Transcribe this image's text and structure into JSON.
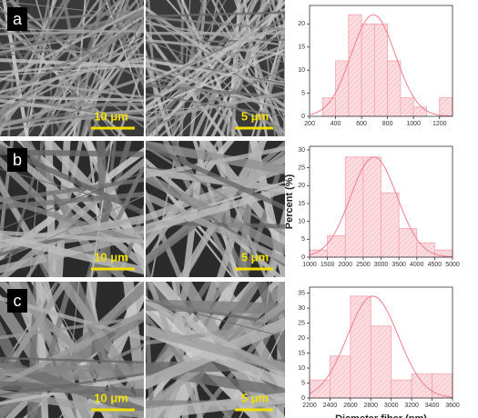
{
  "panels": [
    {
      "label": "a",
      "scale_bars": [
        "10 μm",
        "5 μm"
      ]
    },
    {
      "label": "b",
      "scale_bars": [
        "10 μm",
        "5 μm"
      ]
    },
    {
      "label": "c",
      "scale_bars": [
        "10 μm",
        "5 μm"
      ]
    }
  ],
  "chart_data": [
    {
      "type": "histogram",
      "bins": [
        300,
        400,
        500,
        600,
        700,
        800,
        900,
        1000,
        1100,
        1200,
        1300
      ],
      "values": [
        4,
        12,
        22,
        20,
        20,
        12,
        4,
        2,
        0,
        4
      ],
      "color": "#f4a3ad",
      "xlim": [
        200,
        1300
      ],
      "xticks": [
        200,
        400,
        600,
        800,
        1000,
        1200
      ],
      "ylim": [
        0,
        24
      ],
      "yticks": [
        0,
        5,
        10,
        15,
        20
      ],
      "fit": {
        "mean": 690,
        "sd": 170,
        "peak": 22
      }
    },
    {
      "type": "histogram",
      "bins": [
        1000,
        1500,
        2000,
        2500,
        3000,
        3500,
        4000,
        4500,
        5000
      ],
      "values": [
        2,
        6,
        28,
        28,
        18,
        8,
        4,
        2
      ],
      "color": "#f4a3ad",
      "xlim": [
        1000,
        5000
      ],
      "xticks": [
        1000,
        1500,
        2000,
        2500,
        3000,
        3500,
        4000,
        4500,
        5000
      ],
      "ylim": [
        0,
        31
      ],
      "yticks": [
        0,
        5,
        10,
        15,
        20,
        25,
        30
      ],
      "ylabel": "Percent (%)",
      "fit": {
        "mean": 2800,
        "sd": 650,
        "peak": 28
      }
    },
    {
      "type": "histogram",
      "bins": [
        2200,
        2400,
        2600,
        2800,
        3000,
        3200,
        3400,
        3600
      ],
      "values": [
        6,
        14,
        34,
        24,
        6,
        8,
        8
      ],
      "color": "#f4a3ad",
      "xlim": [
        2200,
        3600
      ],
      "xticks": [
        2200,
        2400,
        2600,
        2800,
        3000,
        3200,
        3400,
        3600
      ],
      "ylim": [
        0,
        37
      ],
      "yticks": [
        0,
        5,
        10,
        15,
        20,
        25,
        30,
        35
      ],
      "xlabel": "Diameter fiber (nm)",
      "fit": {
        "mean": 2820,
        "sd": 250,
        "peak": 34
      }
    }
  ]
}
